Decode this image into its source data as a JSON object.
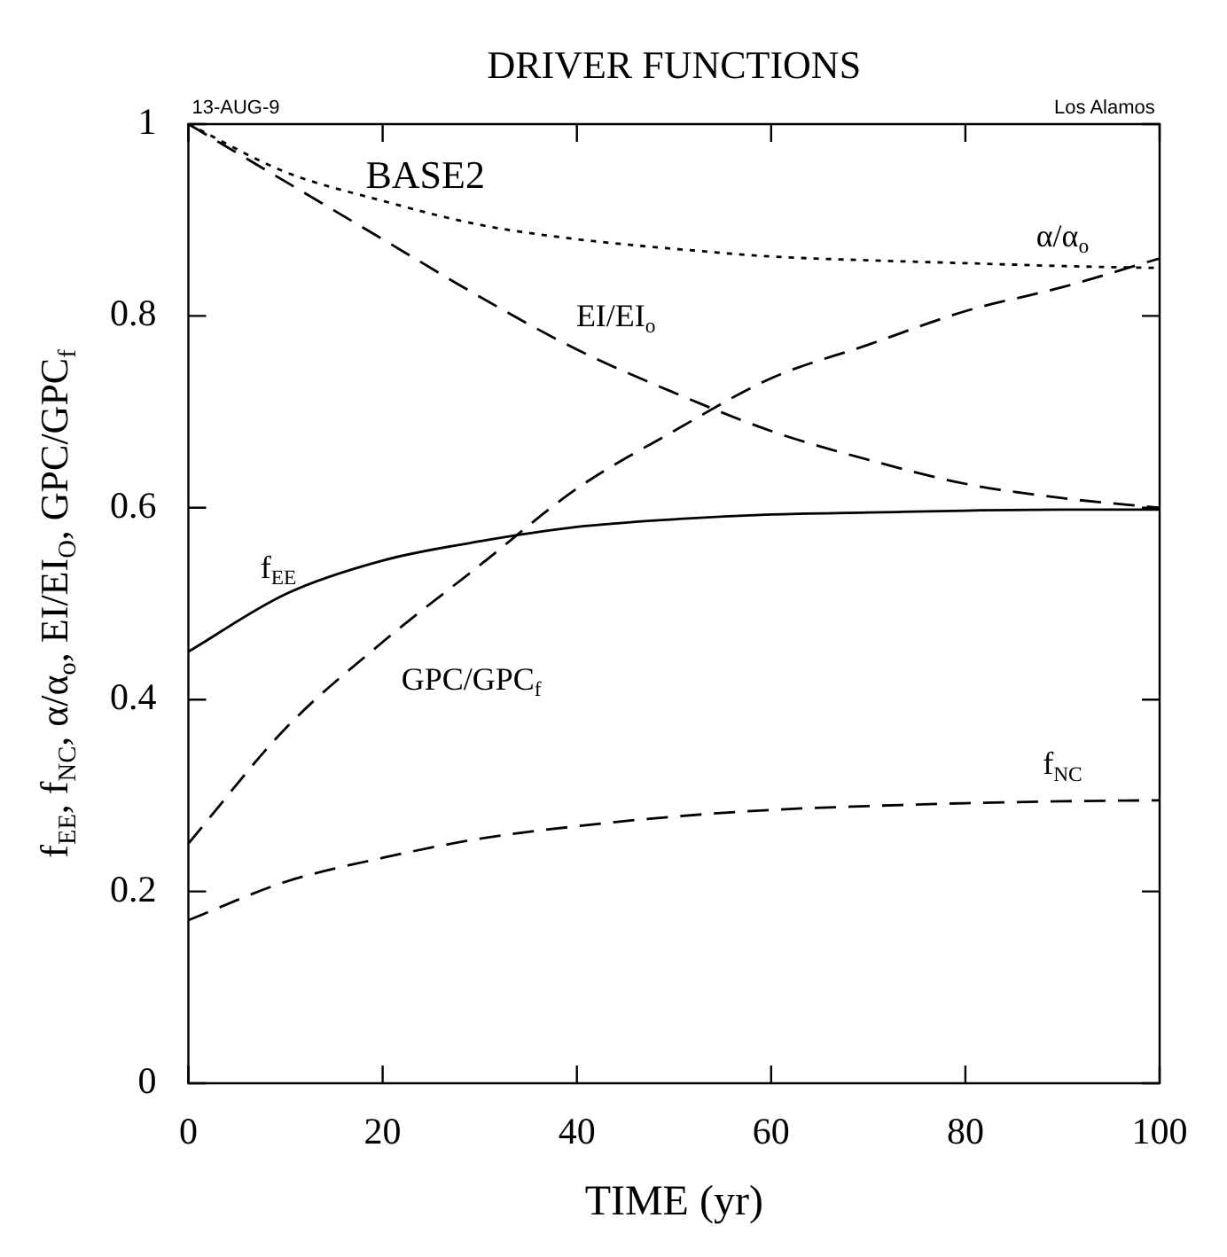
{
  "chart_data": {
    "type": "line",
    "title": "DRIVER FUNCTIONS",
    "xlabel": "TIME (yr)",
    "ylabel": "f$_{EE}$, f$_{NC}$, α/α$_{o}$, EI/EI$_{O}$, GPC/GPC$_{f}$",
    "annotations": [
      "13-AUG-9",
      "Los Alamos",
      "BASE2"
    ],
    "x": [
      0,
      10,
      20,
      30,
      40,
      50,
      60,
      70,
      80,
      90,
      100
    ],
    "series": [
      {
        "name": "α/α$_{o}$",
        "color": "#000000",
        "line_style": "dotted",
        "values": [
          1,
          0.95,
          0.92,
          0.895,
          0.88,
          0.87,
          0.862,
          0.858,
          0.855,
          0.852,
          0.85
        ]
      },
      {
        "name": "EI/EI$_{o}$",
        "color": "#000000",
        "line_style": "dashed",
        "values": [
          1,
          0.94,
          0.88,
          0.82,
          0.765,
          0.72,
          0.68,
          0.65,
          0.625,
          0.61,
          0.6
        ]
      },
      {
        "name": "GPC/GPC$_{f}$",
        "color": "#000000",
        "line_style": "dashed",
        "values": [
          0.25,
          0.37,
          0.46,
          0.54,
          0.62,
          0.68,
          0.735,
          0.77,
          0.805,
          0.83,
          0.86
        ]
      },
      {
        "name": "f$_{EE}$",
        "color": "#000000",
        "line_style": "solid",
        "values": [
          0.45,
          0.51,
          0.545,
          0.565,
          0.58,
          0.588,
          0.593,
          0.595,
          0.597,
          0.598,
          0.598
        ]
      },
      {
        "name": "f$_{NC}$",
        "color": "#000000",
        "line_style": "dashed",
        "values": [
          0.17,
          0.21,
          0.235,
          0.255,
          0.268,
          0.278,
          0.285,
          0.289,
          0.292,
          0.294,
          0.295
        ]
      }
    ],
    "xlim": [
      0,
      100
    ],
    "xticks": [
      0,
      20,
      40,
      60,
      80,
      100
    ],
    "ylim": [
      0,
      1
    ],
    "yticks": [
      0,
      0.2,
      0.4,
      0.6,
      0.8,
      1
    ],
    "grid": false,
    "legend": false
  }
}
